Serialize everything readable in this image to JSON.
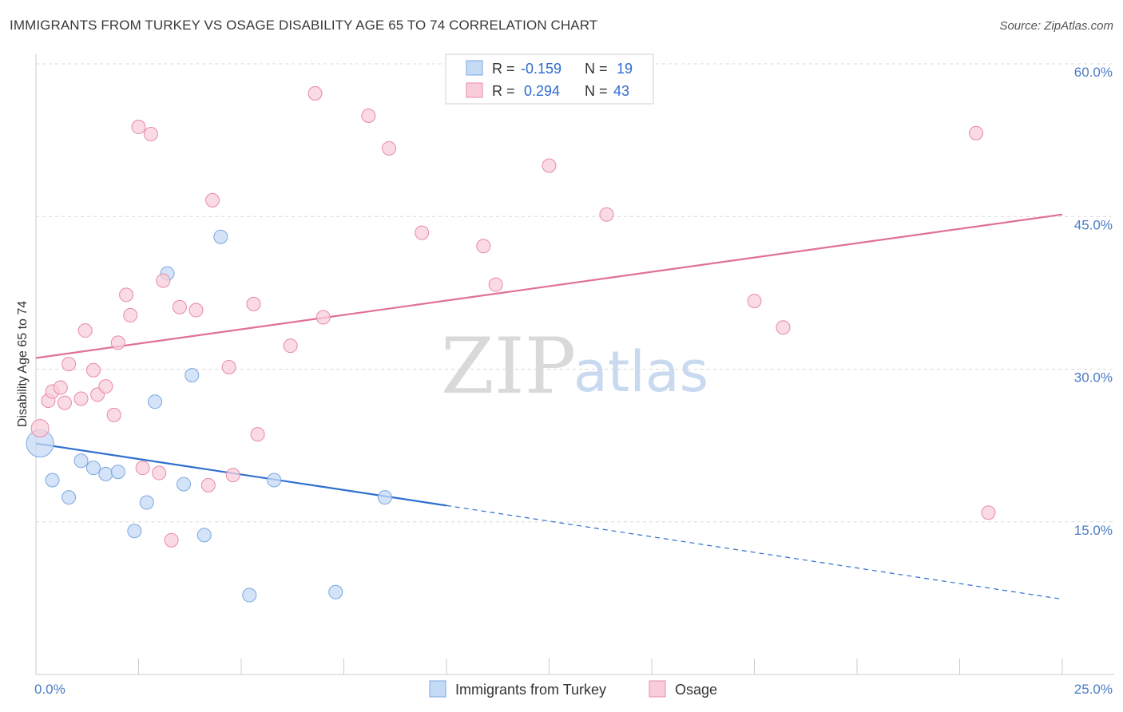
{
  "title": "IMMIGRANTS FROM TURKEY VS OSAGE DISABILITY AGE 65 TO 74 CORRELATION CHART",
  "source": "Source: ZipAtlas.com",
  "watermark": {
    "part1": "ZIP",
    "part2": "atlas"
  },
  "colors": {
    "blue": "#7aa8e0",
    "blue_fill": "#c5daf5",
    "blue_line": "#2e6fcf",
    "pink": "#e88aaa",
    "pink_fill": "#f8cdd9",
    "pink_line": "#e07098"
  },
  "legend": {
    "rows": [
      {
        "r_label": "R =",
        "r_value": "-0.159",
        "n_label": "N =",
        "n_value": "19"
      },
      {
        "r_label": "R =",
        "r_value": "0.294",
        "n_label": "N =",
        "n_value": "43"
      }
    ]
  },
  "chart_data": {
    "type": "scatter",
    "ylabel": "Disability Age 65 to 74",
    "xlim": [
      0,
      25
    ],
    "ylim": [
      0,
      60
    ],
    "x_tick_labels": [
      "0.0%",
      "25.0%"
    ],
    "y_ticks": [
      15,
      30,
      45,
      60
    ],
    "y_tick_labels": [
      "15.0%",
      "30.0%",
      "45.0%",
      "60.0%"
    ],
    "grid": "horizontal-dashed",
    "legend_position": "top-center",
    "series": [
      {
        "name": "Immigrants from Turkey",
        "color": "blue",
        "points": [
          [
            0.1,
            22.7
          ],
          [
            0.4,
            19.1
          ],
          [
            0.8,
            17.4
          ],
          [
            1.1,
            21.0
          ],
          [
            1.4,
            20.3
          ],
          [
            1.7,
            19.7
          ],
          [
            2.0,
            19.9
          ],
          [
            2.4,
            14.1
          ],
          [
            2.7,
            16.9
          ],
          [
            2.9,
            26.8
          ],
          [
            3.2,
            39.4
          ],
          [
            3.6,
            18.7
          ],
          [
            3.8,
            29.4
          ],
          [
            4.1,
            13.7
          ],
          [
            4.5,
            43.0
          ],
          [
            5.2,
            7.8
          ],
          [
            5.8,
            19.1
          ],
          [
            7.3,
            8.1
          ],
          [
            8.5,
            17.4
          ]
        ],
        "trend": {
          "x0": 0,
          "y0": 22.7,
          "x1": 10,
          "y1": 16.6,
          "dashed_to_x": 25,
          "dashed_to_y": 7.4
        }
      },
      {
        "name": "Osage",
        "color": "pink",
        "points": [
          [
            0.1,
            24.2
          ],
          [
            0.3,
            26.9
          ],
          [
            0.4,
            27.8
          ],
          [
            0.6,
            28.2
          ],
          [
            0.7,
            26.7
          ],
          [
            0.8,
            30.5
          ],
          [
            1.1,
            27.1
          ],
          [
            1.2,
            33.8
          ],
          [
            1.4,
            29.9
          ],
          [
            1.5,
            27.5
          ],
          [
            1.7,
            28.3
          ],
          [
            1.9,
            25.5
          ],
          [
            2.0,
            32.6
          ],
          [
            2.2,
            37.3
          ],
          [
            2.3,
            35.3
          ],
          [
            2.5,
            53.8
          ],
          [
            2.6,
            20.3
          ],
          [
            2.8,
            53.1
          ],
          [
            3.0,
            19.8
          ],
          [
            3.1,
            38.7
          ],
          [
            3.3,
            13.2
          ],
          [
            3.5,
            36.1
          ],
          [
            3.9,
            35.8
          ],
          [
            4.2,
            18.6
          ],
          [
            4.3,
            46.6
          ],
          [
            4.7,
            30.2
          ],
          [
            4.8,
            19.6
          ],
          [
            5.3,
            36.4
          ],
          [
            5.4,
            23.6
          ],
          [
            6.2,
            32.3
          ],
          [
            6.8,
            57.1
          ],
          [
            7.0,
            35.1
          ],
          [
            8.1,
            54.9
          ],
          [
            8.6,
            51.7
          ],
          [
            9.4,
            43.4
          ],
          [
            10.9,
            42.1
          ],
          [
            11.2,
            38.3
          ],
          [
            12.5,
            50.0
          ],
          [
            13.9,
            45.2
          ],
          [
            17.5,
            36.7
          ],
          [
            18.2,
            34.1
          ],
          [
            22.9,
            53.2
          ],
          [
            23.2,
            15.9
          ]
        ],
        "trend": {
          "x0": 0,
          "y0": 31.1,
          "x1": 25,
          "y1": 45.2
        }
      }
    ]
  },
  "bottom_legend": [
    {
      "label": "Immigrants from Turkey",
      "color": "blue"
    },
    {
      "label": "Osage",
      "color": "pink"
    }
  ]
}
